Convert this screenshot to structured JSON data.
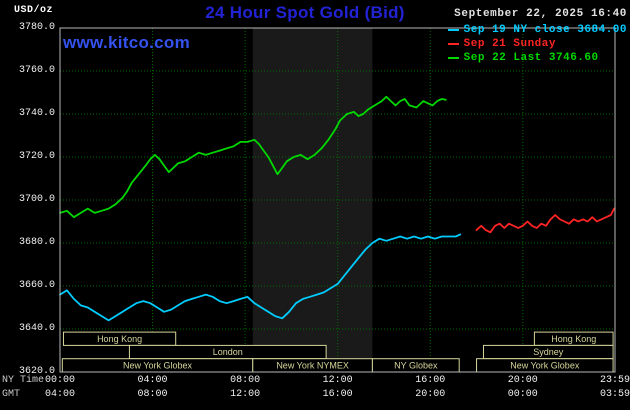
{
  "header": {
    "units_label": "USD/oz",
    "title": "24 Hour Spot Gold (Bid)",
    "datetime": "September 22, 2025 16:40",
    "watermark": "www.kitco.com"
  },
  "legend": [
    {
      "label": "Sep 19 NY close 3684.00",
      "color": "#00ccff"
    },
    {
      "label": "Sep 21 Sunday",
      "color": "#ff2424"
    },
    {
      "label": "Sep 22 Last 3746.60",
      "color": "#00d800"
    }
  ],
  "axes": {
    "ny_time_label": "NY Time",
    "gmt_label": "GMT",
    "ny_ticks": [
      "00:00",
      "04:00",
      "08:00",
      "12:00",
      "16:00",
      "20:00",
      "23:59"
    ],
    "gmt_ticks": [
      "04:00",
      "08:00",
      "12:00",
      "16:00",
      "20:00",
      "00:00",
      "03:59"
    ]
  },
  "chart_data": {
    "type": "line",
    "title": "24 Hour Spot Gold (Bid)",
    "ylabel": "USD/oz",
    "ylim": [
      3620,
      3780
    ],
    "ytick_step": 20,
    "xlim_hours": [
      0,
      23.983
    ],
    "xtick_hours": [
      0,
      4,
      8,
      12,
      16,
      20,
      23.983
    ],
    "grid": true,
    "grid_color": "#006d00",
    "border_color": "#b9b9b9",
    "band": {
      "name": "nymex-session-band",
      "start": 8.33,
      "end": 13.5,
      "color": "#1a1a1a"
    },
    "series": [
      {
        "name": "Sep 19 NY close",
        "color": "#00ccff",
        "points": [
          [
            0,
            3656
          ],
          [
            0.3,
            3658
          ],
          [
            0.6,
            3654
          ],
          [
            0.9,
            3651
          ],
          [
            1.2,
            3650
          ],
          [
            1.5,
            3648
          ],
          [
            1.8,
            3646
          ],
          [
            2.1,
            3644
          ],
          [
            2.4,
            3646
          ],
          [
            2.7,
            3648
          ],
          [
            3.0,
            3650
          ],
          [
            3.3,
            3652
          ],
          [
            3.6,
            3653
          ],
          [
            3.9,
            3652
          ],
          [
            4.2,
            3650
          ],
          [
            4.5,
            3648
          ],
          [
            4.8,
            3649
          ],
          [
            5.1,
            3651
          ],
          [
            5.4,
            3653
          ],
          [
            5.7,
            3654
          ],
          [
            6.0,
            3655
          ],
          [
            6.3,
            3656
          ],
          [
            6.6,
            3655
          ],
          [
            6.9,
            3653
          ],
          [
            7.2,
            3652
          ],
          [
            7.5,
            3653
          ],
          [
            7.8,
            3654
          ],
          [
            8.1,
            3655
          ],
          [
            8.4,
            3652
          ],
          [
            8.7,
            3650
          ],
          [
            9.0,
            3648
          ],
          [
            9.3,
            3646
          ],
          [
            9.6,
            3645
          ],
          [
            9.9,
            3648
          ],
          [
            10.2,
            3652
          ],
          [
            10.5,
            3654
          ],
          [
            10.8,
            3655
          ],
          [
            11.1,
            3656
          ],
          [
            11.4,
            3657
          ],
          [
            11.7,
            3659
          ],
          [
            12.0,
            3661
          ],
          [
            12.3,
            3665
          ],
          [
            12.6,
            3669
          ],
          [
            12.9,
            3673
          ],
          [
            13.2,
            3677
          ],
          [
            13.5,
            3680
          ],
          [
            13.8,
            3682
          ],
          [
            14.1,
            3681
          ],
          [
            14.4,
            3682
          ],
          [
            14.7,
            3683
          ],
          [
            15.0,
            3682
          ],
          [
            15.3,
            3683
          ],
          [
            15.6,
            3682
          ],
          [
            15.9,
            3683
          ],
          [
            16.2,
            3682
          ],
          [
            16.5,
            3683
          ],
          [
            16.8,
            3683
          ],
          [
            17.1,
            3683
          ],
          [
            17.3,
            3684
          ]
        ]
      },
      {
        "name": "Sep 21 Sunday",
        "color": "#ff2424",
        "points": [
          [
            18.0,
            3686
          ],
          [
            18.2,
            3688
          ],
          [
            18.4,
            3686
          ],
          [
            18.6,
            3685
          ],
          [
            18.8,
            3688
          ],
          [
            19.0,
            3689
          ],
          [
            19.2,
            3687
          ],
          [
            19.4,
            3689
          ],
          [
            19.6,
            3688
          ],
          [
            19.8,
            3687
          ],
          [
            20.0,
            3688
          ],
          [
            20.2,
            3690
          ],
          [
            20.4,
            3688
          ],
          [
            20.6,
            3687
          ],
          [
            20.8,
            3689
          ],
          [
            21.0,
            3688
          ],
          [
            21.2,
            3691
          ],
          [
            21.4,
            3693
          ],
          [
            21.6,
            3691
          ],
          [
            21.8,
            3690
          ],
          [
            22.0,
            3689
          ],
          [
            22.2,
            3691
          ],
          [
            22.4,
            3690
          ],
          [
            22.6,
            3691
          ],
          [
            22.8,
            3690
          ],
          [
            23.0,
            3692
          ],
          [
            23.2,
            3690
          ],
          [
            23.4,
            3691
          ],
          [
            23.6,
            3692
          ],
          [
            23.8,
            3693
          ],
          [
            23.95,
            3696
          ]
        ]
      },
      {
        "name": "Sep 22 Last",
        "color": "#00d800",
        "points": [
          [
            0,
            3694
          ],
          [
            0.3,
            3695
          ],
          [
            0.6,
            3692
          ],
          [
            0.9,
            3694
          ],
          [
            1.2,
            3696
          ],
          [
            1.5,
            3694
          ],
          [
            1.8,
            3695
          ],
          [
            2.1,
            3696
          ],
          [
            2.4,
            3698
          ],
          [
            2.7,
            3701
          ],
          [
            2.9,
            3704
          ],
          [
            3.1,
            3708
          ],
          [
            3.4,
            3712
          ],
          [
            3.7,
            3716
          ],
          [
            3.9,
            3719
          ],
          [
            4.1,
            3721
          ],
          [
            4.3,
            3719
          ],
          [
            4.5,
            3716
          ],
          [
            4.7,
            3713
          ],
          [
            4.9,
            3715
          ],
          [
            5.1,
            3717
          ],
          [
            5.4,
            3718
          ],
          [
            5.7,
            3720
          ],
          [
            6.0,
            3722
          ],
          [
            6.3,
            3721
          ],
          [
            6.6,
            3722
          ],
          [
            6.9,
            3723
          ],
          [
            7.2,
            3724
          ],
          [
            7.5,
            3725
          ],
          [
            7.8,
            3727
          ],
          [
            8.1,
            3727
          ],
          [
            8.4,
            3728
          ],
          [
            8.6,
            3726
          ],
          [
            8.8,
            3723
          ],
          [
            9.0,
            3720
          ],
          [
            9.2,
            3716
          ],
          [
            9.4,
            3712
          ],
          [
            9.6,
            3715
          ],
          [
            9.8,
            3718
          ],
          [
            10.1,
            3720
          ],
          [
            10.4,
            3721
          ],
          [
            10.7,
            3719
          ],
          [
            11.0,
            3721
          ],
          [
            11.3,
            3724
          ],
          [
            11.6,
            3728
          ],
          [
            11.9,
            3733
          ],
          [
            12.1,
            3737
          ],
          [
            12.4,
            3740
          ],
          [
            12.7,
            3741
          ],
          [
            12.9,
            3739
          ],
          [
            13.1,
            3740
          ],
          [
            13.3,
            3742
          ],
          [
            13.6,
            3744
          ],
          [
            13.9,
            3746
          ],
          [
            14.1,
            3748
          ],
          [
            14.3,
            3746
          ],
          [
            14.5,
            3744
          ],
          [
            14.7,
            3746
          ],
          [
            14.9,
            3747
          ],
          [
            15.1,
            3744
          ],
          [
            15.4,
            3743
          ],
          [
            15.7,
            3746
          ],
          [
            15.9,
            3745
          ],
          [
            16.1,
            3744
          ],
          [
            16.3,
            3746
          ],
          [
            16.5,
            3747
          ],
          [
            16.67,
            3746.6
          ]
        ]
      }
    ],
    "sessions": {
      "box_color": "#d6d69c",
      "rows": [
        [
          {
            "label": "Hong Kong",
            "start": 0.15,
            "end": 5.0
          },
          {
            "label": "Hong Kong",
            "start": 20.5,
            "end": 23.9
          }
        ],
        [
          {
            "label": "London",
            "start": 3.0,
            "end": 11.5
          },
          {
            "label": "Sydney",
            "start": 18.3,
            "end": 23.9
          }
        ],
        [
          {
            "label": "New York Globex",
            "start": 0.1,
            "end": 8.33
          },
          {
            "label": "New York NYMEX",
            "start": 8.33,
            "end": 13.5
          },
          {
            "label": "NY Globex",
            "start": 13.5,
            "end": 17.25
          },
          {
            "label": "New York Globex",
            "start": 18.0,
            "end": 23.9
          }
        ]
      ]
    }
  }
}
